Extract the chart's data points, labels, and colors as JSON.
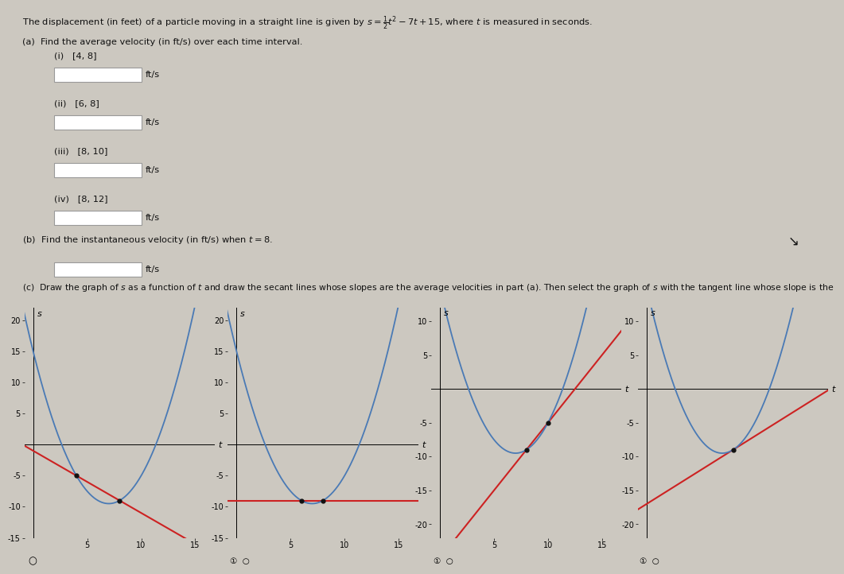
{
  "bg_color": "#ccc8c0",
  "graph_bg": "#c8c4bc",
  "curve_color": "#4a7ab5",
  "secant_color": "#cc2222",
  "dot_color": "#111111",
  "text_color": "#111111",
  "graphs": [
    {
      "t1": 4,
      "t2": 8,
      "tangent": false,
      "ylim": [
        -15,
        22
      ],
      "yticks": [
        -15,
        -10,
        -5,
        5,
        10,
        15,
        20
      ],
      "xticks": [
        5,
        10,
        15
      ]
    },
    {
      "t1": 6,
      "t2": 8,
      "tangent": false,
      "ylim": [
        -15,
        22
      ],
      "yticks": [
        -15,
        -10,
        -5,
        5,
        10,
        15,
        20
      ],
      "xticks": [
        5,
        10,
        15
      ]
    },
    {
      "t1": 8,
      "t2": 10,
      "tangent": false,
      "ylim": [
        -22,
        12
      ],
      "yticks": [
        -20,
        -15,
        -10,
        -5,
        5,
        10
      ],
      "xticks": [
        5,
        10,
        15
      ]
    },
    {
      "t1": 8,
      "t2": 8,
      "tangent": true,
      "ylim": [
        -22,
        12
      ],
      "yticks": [
        -20,
        -15,
        -10,
        -5,
        5,
        10
      ],
      "xticks": []
    }
  ]
}
